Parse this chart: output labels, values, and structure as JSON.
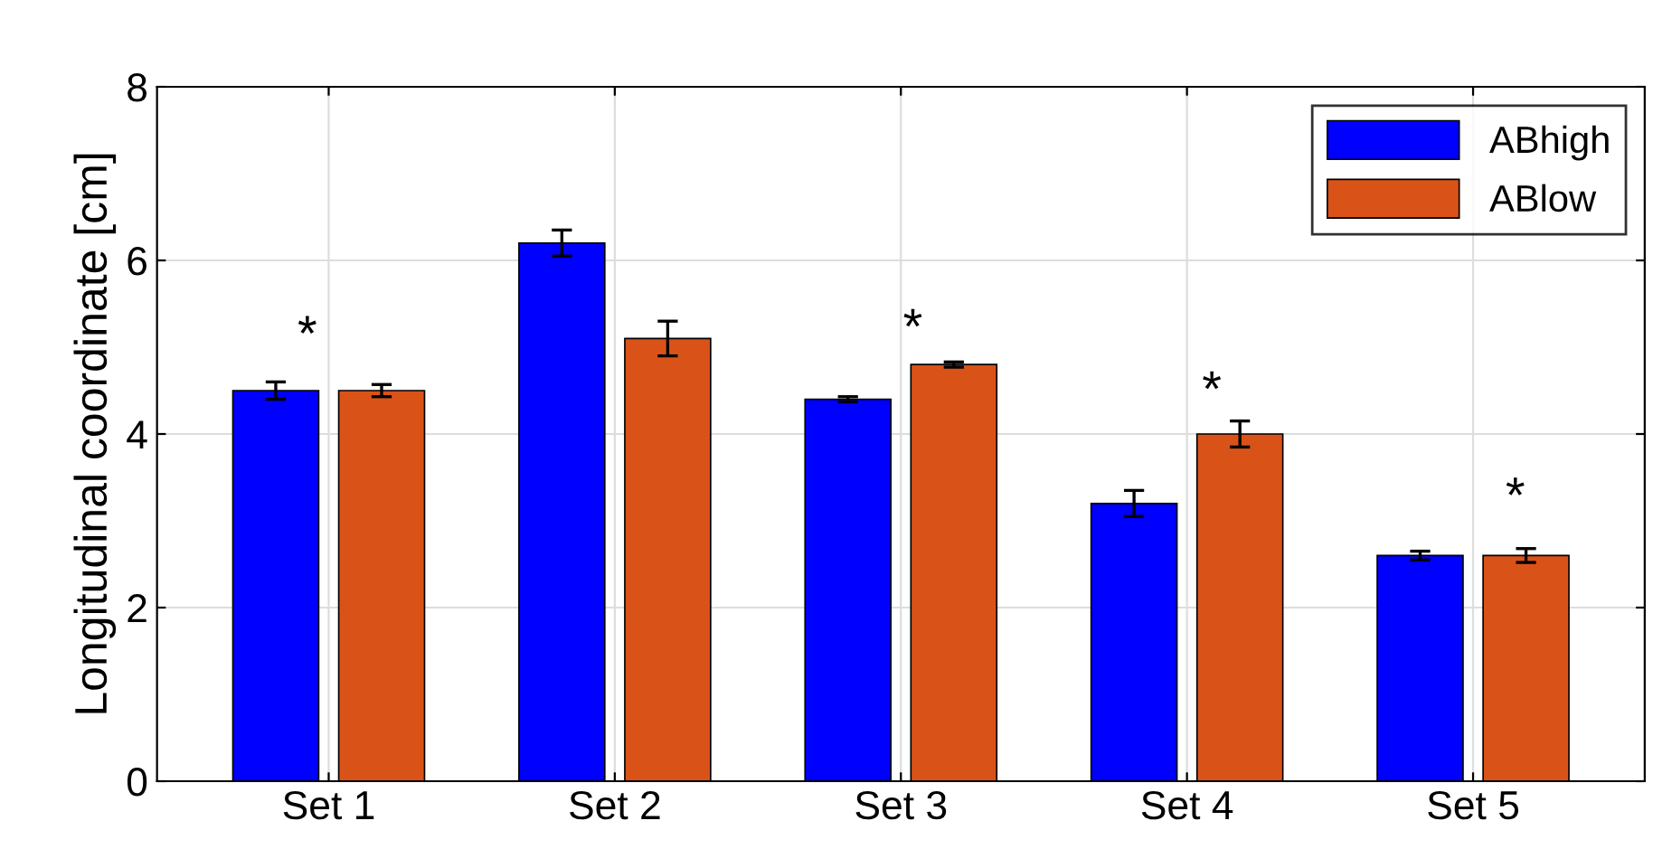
{
  "chart_data": {
    "type": "bar",
    "ylabel": "Longitudinal coordinate [cm]",
    "categories": [
      "Set 1",
      "Set 2",
      "Set 3",
      "Set 4",
      "Set 5"
    ],
    "series": [
      {
        "name": "ABhigh",
        "color": "#0000ff",
        "values": [
          4.5,
          6.2,
          4.4,
          3.2,
          2.6
        ],
        "errors": [
          0.1,
          0.15,
          0.03,
          0.15,
          0.05
        ]
      },
      {
        "name": "ABlow",
        "color": "#d95319",
        "values": [
          4.5,
          5.1,
          4.8,
          4.0,
          2.6
        ],
        "errors": [
          0.07,
          0.2,
          0.03,
          0.15,
          0.08
        ]
      }
    ],
    "ylim": [
      0,
      8
    ],
    "yticks": [
      0,
      2,
      4,
      6,
      8
    ],
    "grid": true,
    "legend": "top right",
    "annotations": [
      "*",
      "*",
      "*",
      "*"
    ]
  }
}
